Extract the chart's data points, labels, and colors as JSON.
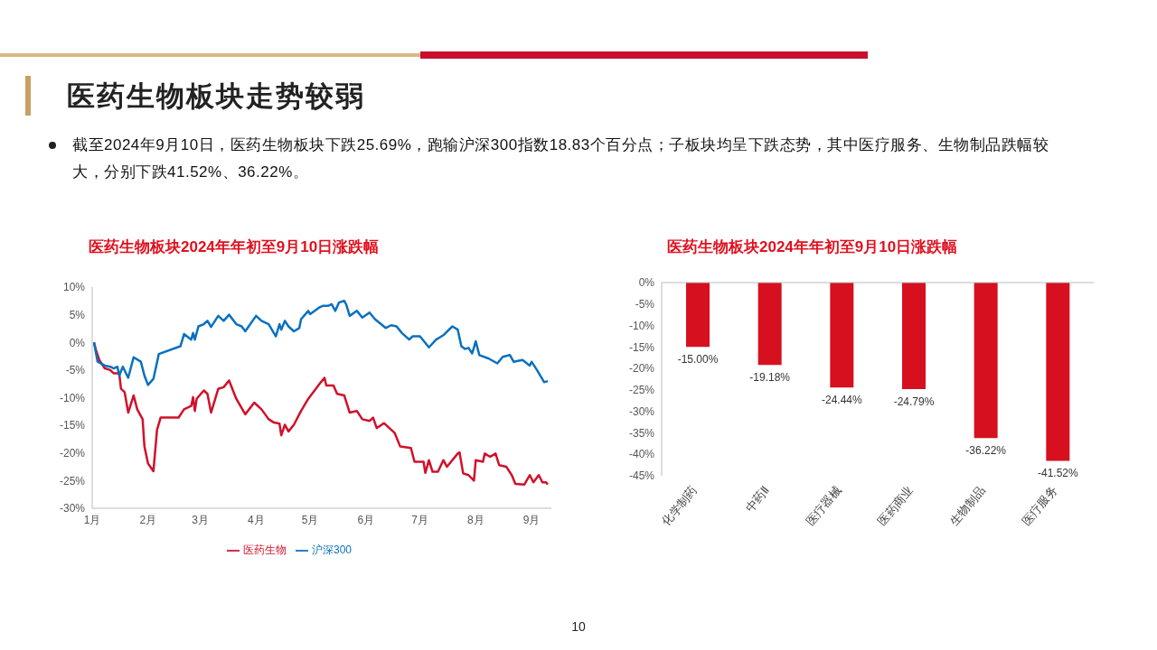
{
  "chart_data": [
    {
      "type": "other",
      "title": "医药生物板块走势较弱",
      "annotations": [
        "截至2024年9月10日，医药生物板块下跌25.69%，跑输沪深300指数18.83个百分点；子板块均呈下跌态势，其中医疗服务、生物制品跌幅较大，分别下跌41.52%、36.22%。",
        "10"
      ]
    },
    {
      "type": "line",
      "title": "医药生物板块2024年年初至9月10日涨跌幅",
      "legend": "bottom",
      "xlim": [
        "2024-01-01",
        "2024-09-12"
      ],
      "xticks": [
        {
          "value": "2024-01-01",
          "label": "1月"
        },
        {
          "value": "2024-02-01",
          "label": "2月"
        },
        {
          "value": "2024-03-01",
          "label": "3月"
        },
        {
          "value": "2024-04-01",
          "label": "4月"
        },
        {
          "value": "2024-05-01",
          "label": "5月"
        },
        {
          "value": "2024-06-01",
          "label": "6月"
        },
        {
          "value": "2024-07-01",
          "label": "7月"
        },
        {
          "value": "2024-08-01",
          "label": "8月"
        },
        {
          "value": "2024-09-01",
          "label": "9月"
        }
      ],
      "ylim": [
        -30,
        10
      ],
      "yticks": [
        {
          "value": -30,
          "label": "-30%"
        },
        {
          "value": -25,
          "label": "-25%"
        },
        {
          "value": -20,
          "label": "-20%"
        },
        {
          "value": -15,
          "label": "-15%"
        },
        {
          "value": -10,
          "label": "-10%"
        },
        {
          "value": -5,
          "label": "-5%"
        },
        {
          "value": 0,
          "label": "0%"
        },
        {
          "value": 5,
          "label": "5%"
        },
        {
          "value": 10,
          "label": "10%"
        }
      ],
      "series": [
        {
          "name": "医药生物",
          "color": "#d0112b",
          "x": [
            "2024-01-02",
            "2024-01-03",
            "2024-01-05",
            "2024-01-08",
            "2024-01-11",
            "2024-01-13",
            "2024-01-16",
            "2024-01-17",
            "2024-01-19",
            "2024-01-21",
            "2024-01-24",
            "2024-01-26",
            "2024-01-29",
            "2024-01-30",
            "2024-02-01",
            "2024-02-04",
            "2024-02-06",
            "2024-02-08",
            "2024-02-18",
            "2024-02-21",
            "2024-02-25",
            "2024-02-26",
            "2024-02-27",
            "2024-02-28",
            "2024-03-03",
            "2024-03-05",
            "2024-03-07",
            "2024-03-11",
            "2024-03-14",
            "2024-03-17",
            "2024-03-21",
            "2024-03-26",
            "2024-03-31",
            "2024-04-04",
            "2024-04-08",
            "2024-04-11",
            "2024-04-14",
            "2024-04-15",
            "2024-04-17",
            "2024-04-19",
            "2024-04-22",
            "2024-04-26",
            "2024-04-30",
            "2024-05-07",
            "2024-05-09",
            "2024-05-10",
            "2024-05-14",
            "2024-05-16",
            "2024-05-20",
            "2024-05-23",
            "2024-05-27",
            "2024-05-30",
            "2024-06-03",
            "2024-06-05",
            "2024-06-07",
            "2024-06-11",
            "2024-06-17",
            "2024-06-20",
            "2024-06-26",
            "2024-06-28",
            "2024-07-03",
            "2024-07-04",
            "2024-07-06",
            "2024-07-08",
            "2024-07-11",
            "2024-07-14",
            "2024-07-16",
            "2024-07-22",
            "2024-07-23",
            "2024-07-25",
            "2024-07-28",
            "2024-07-31",
            "2024-08-01",
            "2024-08-05",
            "2024-08-06",
            "2024-08-09",
            "2024-08-12",
            "2024-08-14",
            "2024-08-18",
            "2024-08-21",
            "2024-08-23",
            "2024-08-28",
            "2024-08-31",
            "2024-09-02",
            "2024-09-05",
            "2024-09-07",
            "2024-09-09",
            "2024-09-10"
          ],
          "values": [
            0,
            -1.3,
            -3.2,
            -4.7,
            -5.0,
            -5.6,
            -5.6,
            -8.4,
            -9.0,
            -12.7,
            -9.6,
            -12.1,
            -13.9,
            -18.8,
            -21.9,
            -23.3,
            -15.8,
            -13.6,
            -13.6,
            -12.1,
            -11.5,
            -9.9,
            -12.4,
            -10.2,
            -8.7,
            -9.3,
            -12.7,
            -8.4,
            -8.1,
            -6.9,
            -10.2,
            -13.0,
            -10.9,
            -12.1,
            -13.9,
            -14.5,
            -14.7,
            -16.8,
            -14.9,
            -16.1,
            -14.9,
            -12.4,
            -10.2,
            -7.2,
            -6.4,
            -7.8,
            -7.8,
            -9.3,
            -9.6,
            -12.7,
            -12.4,
            -13.9,
            -14.2,
            -13.6,
            -15.5,
            -14.6,
            -16.4,
            -18.8,
            -19.1,
            -21.6,
            -21.6,
            -23.6,
            -21.3,
            -23.4,
            -23.4,
            -21.3,
            -22.5,
            -20.1,
            -19.9,
            -23.7,
            -24.0,
            -25.0,
            -21.3,
            -21.6,
            -20.1,
            -20.7,
            -20.1,
            -22.2,
            -22.5,
            -24.0,
            -25.6,
            -25.7,
            -24.0,
            -25.3,
            -24.0,
            -25.3,
            -25.3,
            -25.7
          ]
        },
        {
          "name": "沪深300",
          "color": "#0a70bf",
          "x": [
            "2024-01-02",
            "2024-01-04",
            "2024-01-08",
            "2024-01-11",
            "2024-01-13",
            "2024-01-15",
            "2024-01-16",
            "2024-01-18",
            "2024-01-21",
            "2024-01-24",
            "2024-01-28",
            "2024-01-30",
            "2024-02-01",
            "2024-02-04",
            "2024-02-07",
            "2024-02-19",
            "2024-02-21",
            "2024-02-25",
            "2024-02-26",
            "2024-02-27",
            "2024-02-29",
            "2024-03-03",
            "2024-03-05",
            "2024-03-07",
            "2024-03-11",
            "2024-03-14",
            "2024-03-17",
            "2024-03-21",
            "2024-03-24",
            "2024-03-26",
            "2024-04-01",
            "2024-04-04",
            "2024-04-08",
            "2024-04-12",
            "2024-04-14",
            "2024-04-15",
            "2024-04-17",
            "2024-04-19",
            "2024-04-22",
            "2024-04-25",
            "2024-04-26",
            "2024-04-30",
            "2024-05-01",
            "2024-05-06",
            "2024-05-08",
            "2024-05-11",
            "2024-05-13",
            "2024-05-15",
            "2024-05-17",
            "2024-05-20",
            "2024-05-21",
            "2024-05-23",
            "2024-05-27",
            "2024-05-30",
            "2024-06-03",
            "2024-06-06",
            "2024-06-12",
            "2024-06-15",
            "2024-06-18",
            "2024-06-21",
            "2024-06-25",
            "2024-06-27",
            "2024-07-01",
            "2024-07-06",
            "2024-07-10",
            "2024-07-12",
            "2024-07-14",
            "2024-07-19",
            "2024-07-22",
            "2024-07-24",
            "2024-07-26",
            "2024-07-28",
            "2024-07-30",
            "2024-08-01",
            "2024-08-03",
            "2024-08-08",
            "2024-08-13",
            "2024-08-16",
            "2024-08-20",
            "2024-08-22",
            "2024-08-27",
            "2024-08-31",
            "2024-09-01",
            "2024-09-04",
            "2024-09-08",
            "2024-09-10"
          ],
          "values": [
            0,
            -3.5,
            -4.2,
            -4.4,
            -4.7,
            -4.4,
            -6.0,
            -4.4,
            -6.4,
            -2.7,
            -3.5,
            -6.0,
            -7.7,
            -6.6,
            -2.1,
            -0.7,
            1.5,
            0.5,
            1.7,
            0.5,
            2.9,
            3.3,
            3.9,
            2.8,
            4.8,
            3.9,
            5.0,
            3.3,
            2.9,
            2.0,
            4.8,
            3.9,
            3.3,
            1.1,
            3.3,
            2.3,
            3.9,
            2.9,
            2.0,
            2.6,
            4.2,
            5.7,
            5.1,
            6.3,
            6.6,
            6.6,
            6.9,
            5.7,
            7.2,
            7.5,
            6.9,
            4.8,
            5.7,
            4.5,
            5.4,
            4.2,
            2.6,
            3.1,
            2.9,
            1.7,
            0.5,
            1.1,
            1.1,
            -0.9,
            0.5,
            0.9,
            1.3,
            2.9,
            2.3,
            -0.7,
            -1.2,
            -1.0,
            -2.0,
            0.2,
            -2.3,
            -2.9,
            -3.8,
            -2.6,
            -2.3,
            -3.5,
            -3.2,
            -4.2,
            -3.5,
            -5.0,
            -7.2,
            -7.0
          ]
        }
      ]
    },
    {
      "type": "bar",
      "title": "医药生物板块2024年年初至9月10日涨跌幅",
      "categories": [
        "化学制药",
        "中药Ⅱ",
        "医疗器械",
        "医药商业",
        "生物制品",
        "医疗服务"
      ],
      "values": [
        -15.0,
        -19.18,
        -24.44,
        -24.79,
        -36.22,
        -41.52
      ],
      "value_labels": [
        "-15.00%",
        "-19.18%",
        "-24.44%",
        "-24.79%",
        "-36.22%",
        "-41.52%"
      ],
      "color": "#d7101f",
      "ylim": [
        -45,
        0
      ],
      "yticks": [
        {
          "value": -45,
          "label": "-45%"
        },
        {
          "value": -40,
          "label": "-40%"
        },
        {
          "value": -35,
          "label": "-35%"
        },
        {
          "value": -30,
          "label": "-30%"
        },
        {
          "value": -25,
          "label": "-25%"
        },
        {
          "value": -20,
          "label": "-20%"
        },
        {
          "value": -15,
          "label": "-15%"
        },
        {
          "value": -10,
          "label": "-10%"
        },
        {
          "value": -5,
          "label": "-5%"
        },
        {
          "value": 0,
          "label": "0%"
        }
      ]
    }
  ]
}
